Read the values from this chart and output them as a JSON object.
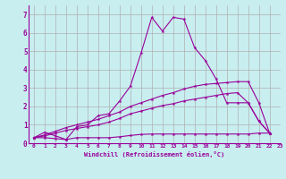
{
  "xlabel": "Windchill (Refroidissement éolien,°C)",
  "bg_color": "#c8eef0",
  "grid_color": "#b0b0b0",
  "line_color": "#990099",
  "xlim": [
    -0.5,
    23
  ],
  "ylim": [
    0,
    7.5
  ],
  "xticks": [
    0,
    1,
    2,
    3,
    4,
    5,
    6,
    7,
    8,
    9,
    10,
    11,
    12,
    13,
    14,
    15,
    16,
    17,
    18,
    19,
    20,
    21,
    22,
    23
  ],
  "yticks": [
    0,
    1,
    2,
    3,
    4,
    5,
    6,
    7
  ],
  "series": [
    {
      "x": [
        0,
        1,
        2,
        3,
        4,
        5,
        6,
        7,
        8,
        9,
        10,
        11,
        12,
        13,
        14,
        15,
        16,
        17,
        18,
        19,
        20,
        21,
        22
      ],
      "y": [
        0.3,
        0.6,
        0.4,
        0.2,
        0.9,
        1.0,
        1.5,
        1.6,
        2.3,
        3.1,
        4.9,
        6.85,
        6.1,
        6.85,
        6.75,
        5.2,
        4.5,
        3.5,
        2.2,
        2.2,
        2.2,
        1.2,
        0.55
      ]
    },
    {
      "x": [
        0,
        1,
        2,
        3,
        4,
        5,
        6,
        7,
        8,
        9,
        10,
        11,
        12,
        13,
        14,
        15,
        16,
        17,
        18,
        19,
        20,
        21,
        22
      ],
      "y": [
        0.3,
        0.45,
        0.65,
        0.85,
        1.0,
        1.15,
        1.3,
        1.5,
        1.7,
        2.0,
        2.2,
        2.4,
        2.6,
        2.75,
        2.95,
        3.1,
        3.2,
        3.25,
        3.3,
        3.35,
        3.35,
        2.2,
        0.55
      ]
    },
    {
      "x": [
        0,
        1,
        2,
        3,
        4,
        5,
        6,
        7,
        8,
        9,
        10,
        11,
        12,
        13,
        14,
        15,
        16,
        17,
        18,
        19,
        20,
        21,
        22
      ],
      "y": [
        0.3,
        0.4,
        0.55,
        0.7,
        0.8,
        0.9,
        1.0,
        1.15,
        1.35,
        1.6,
        1.75,
        1.9,
        2.05,
        2.15,
        2.3,
        2.4,
        2.5,
        2.6,
        2.7,
        2.75,
        2.2,
        1.2,
        0.55
      ]
    },
    {
      "x": [
        0,
        1,
        2,
        3,
        4,
        5,
        6,
        7,
        8,
        9,
        10,
        11,
        12,
        13,
        14,
        15,
        16,
        17,
        18,
        19,
        20,
        21,
        22
      ],
      "y": [
        0.3,
        0.3,
        0.25,
        0.2,
        0.3,
        0.3,
        0.3,
        0.3,
        0.35,
        0.42,
        0.48,
        0.5,
        0.5,
        0.5,
        0.5,
        0.5,
        0.5,
        0.5,
        0.5,
        0.5,
        0.5,
        0.55,
        0.55
      ]
    }
  ]
}
